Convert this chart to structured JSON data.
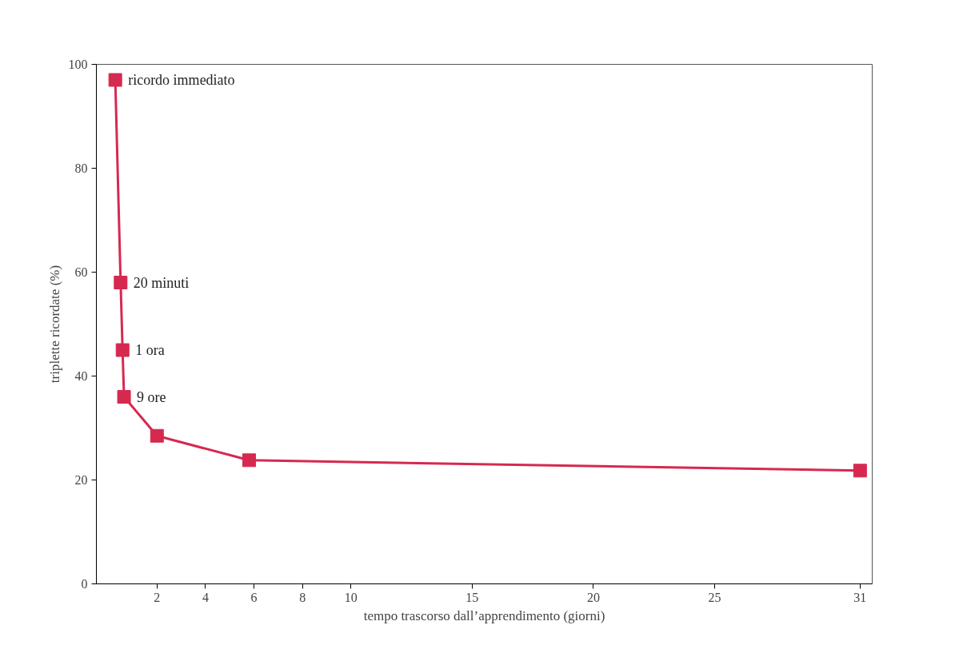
{
  "chart_data": {
    "type": "line",
    "xlabel": "tempo trascorso dall’apprendimento (giorni)",
    "ylabel": "triplette ricordate (%)",
    "x": [
      0.28,
      0.5,
      0.58,
      0.64,
      2,
      5.8,
      31
    ],
    "series": [
      {
        "color": "#d6294f",
        "values": [
          97,
          58,
          45,
          36,
          28.5,
          23.8,
          21.8
        ]
      }
    ],
    "xlim": [
      -0.5,
      31.5
    ],
    "xticks": [
      2,
      4,
      6,
      8,
      10,
      15,
      20,
      25,
      31
    ],
    "ylim": [
      0,
      100
    ],
    "yticks": [
      0,
      20,
      40,
      60,
      80,
      100
    ],
    "marker": "square",
    "grid": false,
    "annotations": [
      {
        "text": "ricordo immediato",
        "x": 0.28,
        "y": 97
      },
      {
        "text": "20 minuti",
        "x": 0.5,
        "y": 58
      },
      {
        "text": "1 ora",
        "x": 0.58,
        "y": 45
      },
      {
        "text": "9 ore",
        "x": 0.64,
        "y": 36
      }
    ]
  }
}
